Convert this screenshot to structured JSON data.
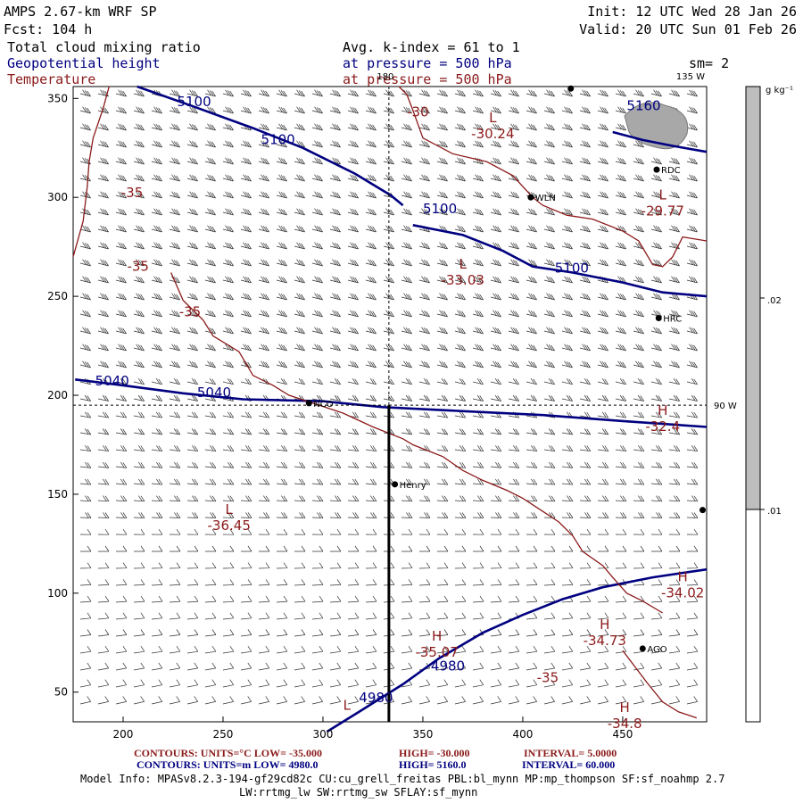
{
  "header": {
    "model": "AMPS 2.67-km WRF SP",
    "fcst": "Fcst:  104 h",
    "init": "Init: 12 UTC Wed 28 Jan 26",
    "valid": "Valid: 20 UTC Sun 01 Feb 26",
    "field1": "Total cloud mixing ratio",
    "field2": "Geopotential height",
    "field3": "Temperature",
    "kindex": "Avg. k-index =  61 to   1",
    "pressure1": "at pressure =  500 hPa",
    "pressure2": "at pressure =  500 hPa",
    "smooth": "sm= 2"
  },
  "colorbar": {
    "unit": "g kg⁻¹",
    "ticks": [
      ".02",
      ".01"
    ]
  },
  "footer": {
    "temp_contours": "CONTOURS:  UNITS=°C  LOW= -35.000",
    "temp_high": "HIGH= -30.000",
    "temp_interval": "INTERVAL=   5.0000",
    "hgt_contours": "CONTOURS:  UNITS=m   LOW=  4980.0",
    "hgt_high": "HIGH=  5160.0",
    "hgt_interval": "INTERVAL=   60.000",
    "model_info": "Model Info: MPASv8.2.3-194-gf29cd82c CU:cu_grell_freitas PBL:bl_mynn MP:mp_thompson SF:sf_noahmp 2.7",
    "model_info2": "LW:rrtmg_lw SW:rrtmg_sw SFLAY:sf_mynn"
  },
  "colors": {
    "temperature": "#8B1A1A",
    "height": "#000080",
    "cloud": "#999999"
  },
  "chart_data": {
    "type": "contour-map",
    "title": "AMPS 2.67-km WRF SP — Total cloud mixing ratio, Geopotential height, Temperature at 500 hPa",
    "x_ticks": [
      200,
      250,
      300,
      350,
      400,
      450
    ],
    "y_ticks": [
      50,
      100,
      150,
      200,
      250,
      300,
      350
    ],
    "xlim": [
      175,
      492
    ],
    "ylim": [
      35,
      356
    ],
    "meridian_labels": [
      "180",
      "135 W",
      "90 W"
    ],
    "height_lines": [
      {
        "label": "5100",
        "points": [
          [
            207,
            356
          ],
          [
            235,
            346
          ],
          [
            265,
            335
          ],
          [
            290,
            325
          ],
          [
            316,
            312
          ],
          [
            334,
            301
          ],
          [
            340,
            296
          ]
        ]
      },
      {
        "label": "5100",
        "points": [
          [
            345,
            286
          ],
          [
            370,
            281
          ],
          [
            390,
            273
          ],
          [
            405,
            265
          ],
          [
            425,
            262
          ],
          [
            450,
            257
          ],
          [
            470,
            252
          ],
          [
            492,
            250
          ]
        ]
      },
      {
        "label": "5160",
        "points": [
          [
            445,
            333
          ],
          [
            460,
            329
          ],
          [
            475,
            326
          ],
          [
            492,
            323
          ]
        ]
      },
      {
        "label": "5040",
        "points": [
          [
            176,
            208
          ],
          [
            200,
            205
          ],
          [
            230,
            201
          ],
          [
            260,
            198
          ],
          [
            300,
            197
          ],
          [
            330,
            194
          ],
          [
            370,
            192
          ],
          [
            410,
            190
          ],
          [
            450,
            187
          ],
          [
            492,
            184
          ]
        ]
      },
      {
        "label": "4980",
        "points": [
          [
            302,
            30
          ],
          [
            318,
            40
          ],
          [
            340,
            54
          ],
          [
            358,
            67
          ],
          [
            380,
            80
          ],
          [
            400,
            89
          ],
          [
            420,
            97
          ],
          [
            440,
            103
          ],
          [
            465,
            108
          ],
          [
            492,
            112
          ]
        ]
      }
    ],
    "height_labels": [
      {
        "text": "5100",
        "x": 227,
        "y": 346
      },
      {
        "text": "5100",
        "x": 269,
        "y": 327
      },
      {
        "text": "5100",
        "x": 350,
        "y": 292
      },
      {
        "text": "5100",
        "x": 416,
        "y": 262
      },
      {
        "text": "5160",
        "x": 452,
        "y": 344
      },
      {
        "text": "5040",
        "x": 186,
        "y": 205
      },
      {
        "text": "5040",
        "x": 237,
        "y": 199
      },
      {
        "text": "4980",
        "x": 354,
        "y": 61
      },
      {
        "text": "4980",
        "x": 318,
        "y": 45
      }
    ],
    "temperature_lines": [
      {
        "label": "-30",
        "points": [
          [
            338,
            356
          ],
          [
            342,
            352
          ],
          [
            345,
            344
          ],
          [
            350,
            330
          ],
          [
            365,
            322
          ],
          [
            382,
            318
          ],
          [
            395,
            311
          ],
          [
            405,
            300
          ],
          [
            410,
            296
          ],
          [
            422,
            291
          ],
          [
            435,
            289
          ],
          [
            450,
            283
          ],
          [
            458,
            278
          ],
          [
            465,
            266
          ],
          [
            470,
            265
          ],
          [
            475,
            270
          ],
          [
            480,
            280
          ],
          [
            492,
            278
          ]
        ]
      },
      {
        "label": "-35",
        "points": [
          [
            193,
            356
          ],
          [
            190,
            345
          ],
          [
            185,
            330
          ],
          [
            183,
            318
          ],
          [
            182,
            305
          ],
          [
            180,
            288
          ],
          [
            175,
            270
          ]
        ]
      },
      {
        "label": "-35",
        "points": [
          [
            224,
            262
          ],
          [
            230,
            248
          ],
          [
            240,
            238
          ],
          [
            245,
            230
          ],
          [
            258,
            222
          ],
          [
            265,
            210
          ],
          [
            275,
            205
          ],
          [
            283,
            200
          ],
          [
            295,
            196
          ],
          [
            310,
            191
          ],
          [
            325,
            184
          ],
          [
            340,
            178
          ],
          [
            345,
            175
          ],
          [
            360,
            169
          ],
          [
            370,
            162
          ],
          [
            380,
            157
          ],
          [
            392,
            152
          ],
          [
            400,
            148
          ],
          [
            412,
            140
          ],
          [
            418,
            136
          ],
          [
            425,
            129
          ],
          [
            430,
            121
          ],
          [
            440,
            114
          ],
          [
            445,
            108
          ],
          [
            452,
            100
          ],
          [
            460,
            96
          ],
          [
            470,
            90
          ]
        ]
      },
      {
        "label": "-35",
        "points": [
          [
            450,
            71
          ],
          [
            462,
            55
          ],
          [
            470,
            45
          ],
          [
            478,
            40
          ],
          [
            487,
            37
          ]
        ]
      }
    ],
    "temperature_labels": [
      {
        "text": "-30",
        "x": 342,
        "y": 341
      },
      {
        "text": "-35",
        "x": 199,
        "y": 300
      },
      {
        "text": "-35",
        "x": 202,
        "y": 263
      },
      {
        "text": "-35",
        "x": 228,
        "y": 240
      },
      {
        "text": "-35",
        "x": 407,
        "y": 55
      }
    ],
    "extrema": [
      {
        "type": "L",
        "value": "-30.24",
        "x": 385,
        "y": 338
      },
      {
        "type": "L",
        "value": "-29.77",
        "x": 470,
        "y": 299
      },
      {
        "type": "L",
        "value": "-33.03",
        "x": 370,
        "y": 264
      },
      {
        "type": "H",
        "value": "-32.4",
        "x": 470,
        "y": 190
      },
      {
        "type": "L",
        "value": "-36.45",
        "x": 253,
        "y": 140
      },
      {
        "type": "H",
        "value": "-34.02",
        "x": 480,
        "y": 106
      },
      {
        "type": "H",
        "value": "-34.73",
        "x": 441,
        "y": 82
      },
      {
        "type": "H",
        "value": "-35.07",
        "x": 357,
        "y": 76
      },
      {
        "type": "H",
        "value": "-34.8",
        "x": 451,
        "y": 40
      },
      {
        "type": "L",
        "value": "",
        "x": 312,
        "y": 41
      }
    ],
    "stations": [
      {
        "name": "RDC",
        "x": 467,
        "y": 314
      },
      {
        "name": "WLN",
        "x": 404,
        "y": 300
      },
      {
        "name": "HRC",
        "x": 468,
        "y": 239
      },
      {
        "name": "NCO",
        "x": 293,
        "y": 196
      },
      {
        "name": "Henry",
        "x": 336,
        "y": 155
      },
      {
        "name": "AGO",
        "x": 460,
        "y": 72
      },
      {
        "name": "",
        "x": 490,
        "y": 142
      },
      {
        "name": "",
        "x": 424,
        "y": 355
      }
    ],
    "cross_section_x": 333,
    "cross_section_y": [
      35,
      195
    ],
    "dashed_meridian_x": 333,
    "dashed_parallel_y": 195
  }
}
